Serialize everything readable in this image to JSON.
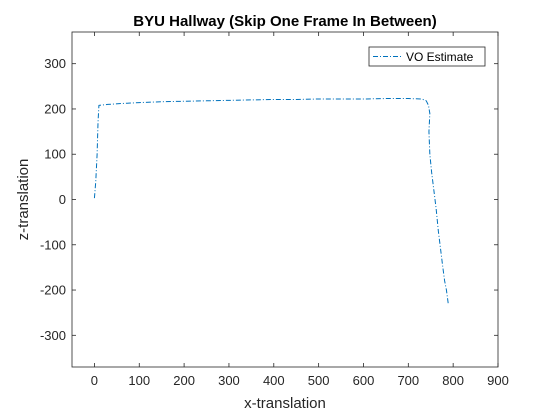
{
  "chart_data": {
    "type": "line",
    "title": "BYU Hallway (Skip One Frame In Between)",
    "xlabel": "x-translation",
    "ylabel": "z-translation",
    "xlim": [
      -50,
      900
    ],
    "ylim": [
      -370,
      370
    ],
    "xticks": [
      0,
      100,
      200,
      300,
      400,
      500,
      600,
      700,
      800,
      900
    ],
    "yticks": [
      -300,
      -200,
      -100,
      0,
      100,
      200,
      300
    ],
    "grid": false,
    "legend_position": "top-right",
    "series": [
      {
        "name": "VO Estimate",
        "color": "#0072BD",
        "line_style": "dash-dot",
        "x": [
          0,
          3,
          6,
          8,
          10,
          30,
          60,
          100,
          150,
          200,
          250,
          300,
          350,
          400,
          450,
          500,
          550,
          600,
          650,
          700,
          730,
          740,
          745,
          748,
          746,
          748,
          752,
          757,
          762,
          767,
          772,
          777,
          781,
          785,
          789
        ],
        "y": [
          3,
          40,
          100,
          170,
          208,
          210,
          212,
          214,
          216,
          217,
          218,
          219,
          220,
          221,
          221,
          222,
          222,
          222,
          223,
          223,
          222,
          218,
          208,
          190,
          150,
          100,
          60,
          20,
          -20,
          -70,
          -110,
          -150,
          -180,
          -200,
          -230
        ]
      }
    ]
  }
}
